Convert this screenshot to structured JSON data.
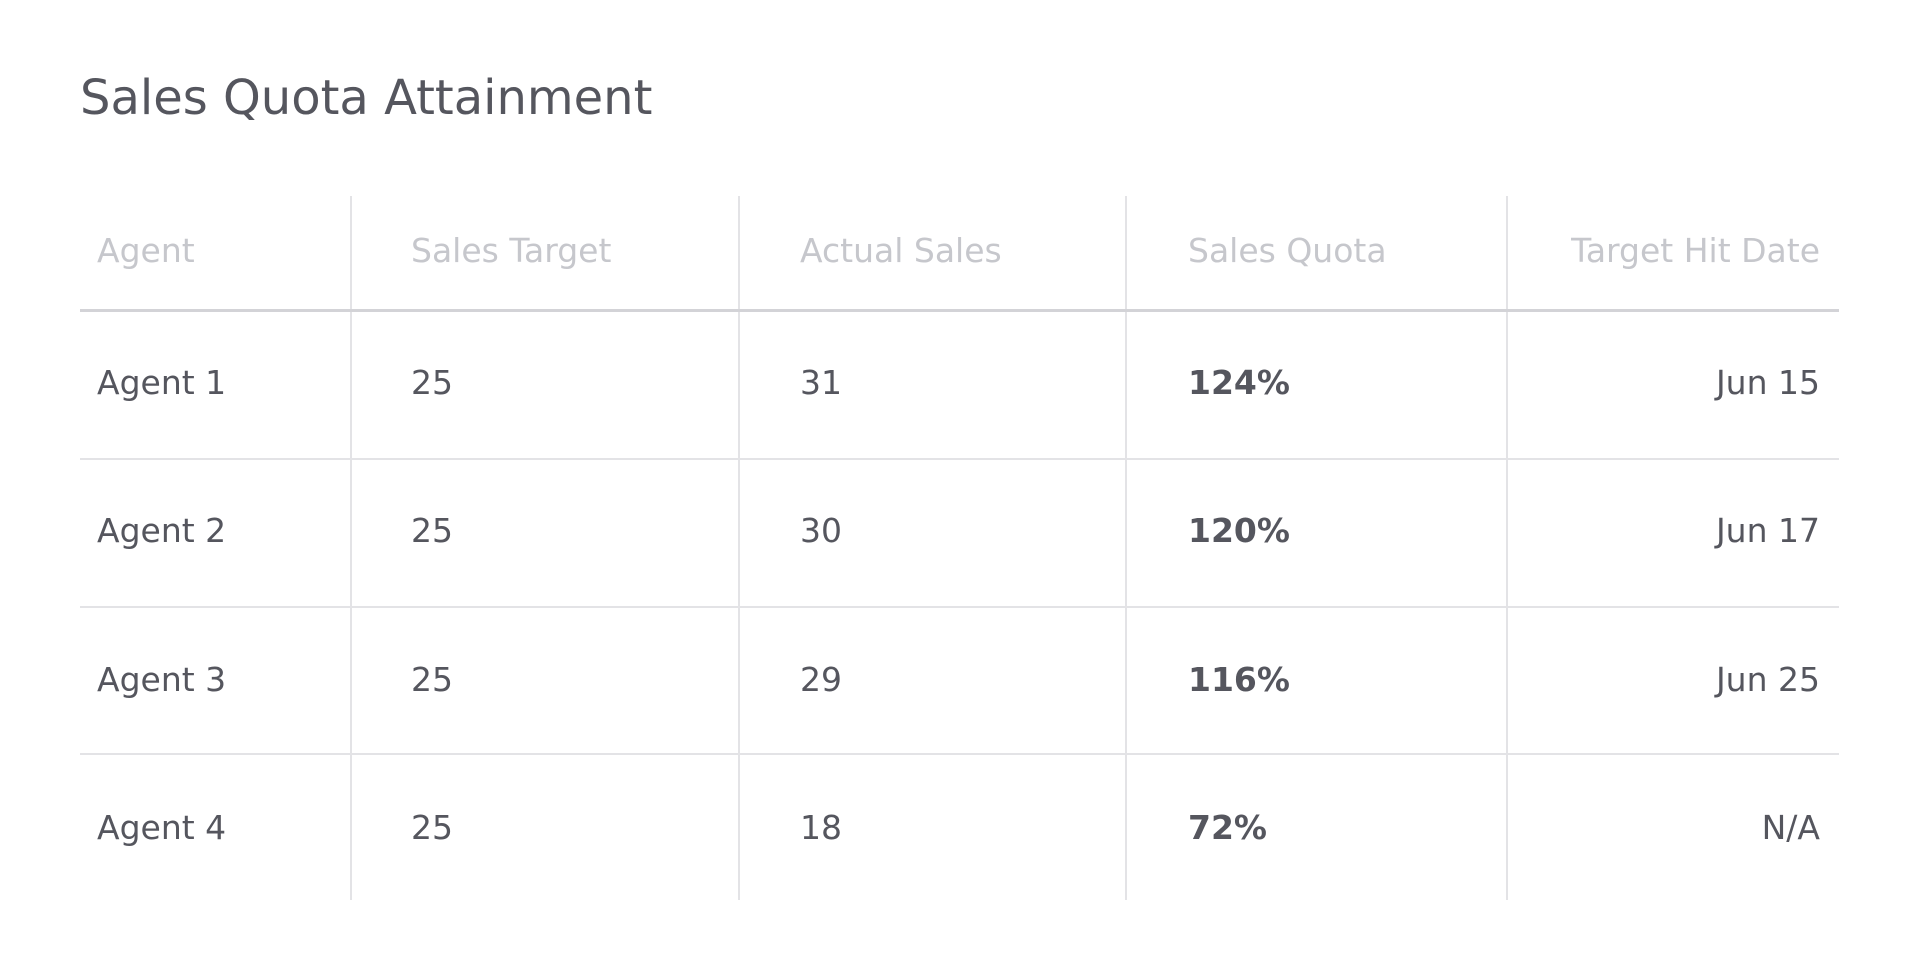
{
  "header": {
    "title": "Sales Quota Attainment"
  },
  "table": {
    "columns": [
      "Agent",
      "Sales Target",
      "Actual Sales",
      "Sales Quota",
      "Target Hit Date"
    ],
    "rows": [
      [
        "Agent 1",
        25,
        31,
        "124%",
        "Jun 15"
      ],
      [
        "Agent 2",
        25,
        30,
        "120%",
        "Jun 17"
      ],
      [
        "Agent 3",
        25,
        29,
        "116%",
        "Jun 25"
      ],
      [
        "Agent 4",
        25,
        18,
        "72%",
        "N/A"
      ]
    ]
  }
}
